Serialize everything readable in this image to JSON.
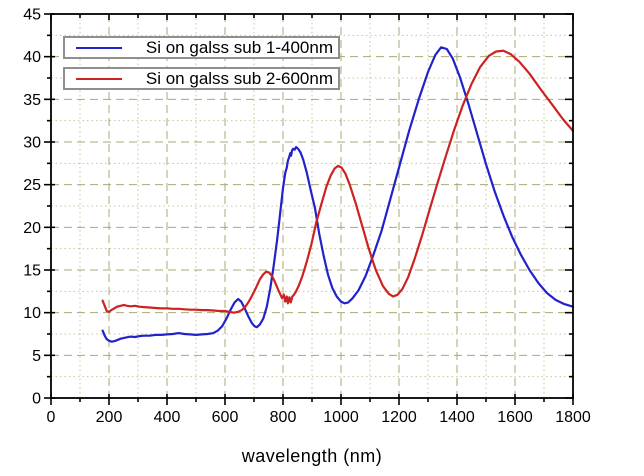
{
  "chart_data": {
    "type": "line",
    "title": "",
    "xlabel": "wavelength (nm)",
    "ylabel": "",
    "xlim": [
      0,
      1800
    ],
    "ylim": [
      0,
      45
    ],
    "xticks": [
      0,
      200,
      400,
      600,
      800,
      1000,
      1200,
      1400,
      1600,
      1800
    ],
    "yticks": [
      0,
      5,
      10,
      15,
      20,
      25,
      30,
      35,
      40,
      45
    ],
    "x_minor_step": 100,
    "y_minor_step": 2.5,
    "grid": "major dashed + minor dotted, olive color, on",
    "legend_position": "top-left, each entry in own framed box",
    "colors": {
      "series1": "#2222cc",
      "series2": "#cc2222",
      "grid_major": "#a9a973",
      "grid_minor": "#c6c69c",
      "axis": "#000000",
      "legend_border": "#8f8f8f",
      "background": "#ffffff"
    },
    "series": [
      {
        "name": "Si on galss sub 1-400nm",
        "color": "#2222cc",
        "points": [
          [
            178,
            7.9
          ],
          [
            185,
            7.3
          ],
          [
            192,
            6.9
          ],
          [
            200,
            6.7
          ],
          [
            210,
            6.6
          ],
          [
            222,
            6.7
          ],
          [
            240,
            6.95
          ],
          [
            260,
            7.1
          ],
          [
            275,
            7.2
          ],
          [
            290,
            7.15
          ],
          [
            305,
            7.25
          ],
          [
            320,
            7.3
          ],
          [
            340,
            7.3
          ],
          [
            360,
            7.4
          ],
          [
            380,
            7.4
          ],
          [
            400,
            7.45
          ],
          [
            420,
            7.5
          ],
          [
            440,
            7.6
          ],
          [
            460,
            7.5
          ],
          [
            480,
            7.45
          ],
          [
            500,
            7.4
          ],
          [
            520,
            7.45
          ],
          [
            540,
            7.5
          ],
          [
            560,
            7.6
          ],
          [
            575,
            7.9
          ],
          [
            590,
            8.4
          ],
          [
            605,
            9.3
          ],
          [
            620,
            10.4
          ],
          [
            633,
            11.2
          ],
          [
            645,
            11.6
          ],
          [
            656,
            11.3
          ],
          [
            668,
            10.5
          ],
          [
            680,
            9.6
          ],
          [
            692,
            8.8
          ],
          [
            702,
            8.4
          ],
          [
            710,
            8.3
          ],
          [
            720,
            8.6
          ],
          [
            732,
            9.3
          ],
          [
            744,
            10.7
          ],
          [
            756,
            12.8
          ],
          [
            768,
            15.5
          ],
          [
            780,
            18.6
          ],
          [
            790,
            21.6
          ],
          [
            800,
            24.6
          ],
          [
            808,
            26.4
          ],
          [
            813,
            27.0
          ],
          [
            817,
            27.8
          ],
          [
            821,
            28.2
          ],
          [
            825,
            28.7
          ],
          [
            828,
            28.4
          ],
          [
            831,
            29.0
          ],
          [
            835,
            29.2
          ],
          [
            840,
            29.1
          ],
          [
            845,
            29.4
          ],
          [
            852,
            29.2
          ],
          [
            860,
            28.8
          ],
          [
            870,
            27.9
          ],
          [
            882,
            26.4
          ],
          [
            895,
            24.4
          ],
          [
            910,
            22.3
          ],
          [
            925,
            19.2
          ],
          [
            940,
            16.7
          ],
          [
            955,
            14.5
          ],
          [
            970,
            12.9
          ],
          [
            985,
            11.9
          ],
          [
            1000,
            11.3
          ],
          [
            1012,
            11.1
          ],
          [
            1025,
            11.2
          ],
          [
            1040,
            11.7
          ],
          [
            1060,
            12.6
          ],
          [
            1085,
            14.3
          ],
          [
            1110,
            16.6
          ],
          [
            1140,
            19.6
          ],
          [
            1170,
            23.3
          ],
          [
            1200,
            27.0
          ],
          [
            1235,
            31.3
          ],
          [
            1270,
            35.2
          ],
          [
            1300,
            38.2
          ],
          [
            1325,
            40.2
          ],
          [
            1345,
            41.1
          ],
          [
            1365,
            40.9
          ],
          [
            1385,
            39.8
          ],
          [
            1410,
            37.6
          ],
          [
            1440,
            34.4
          ],
          [
            1470,
            30.9
          ],
          [
            1500,
            27.4
          ],
          [
            1530,
            24.2
          ],
          [
            1560,
            21.4
          ],
          [
            1590,
            18.9
          ],
          [
            1620,
            16.8
          ],
          [
            1650,
            15.0
          ],
          [
            1680,
            13.5
          ],
          [
            1710,
            12.3
          ],
          [
            1740,
            11.5
          ],
          [
            1770,
            11.0
          ],
          [
            1800,
            10.7
          ]
        ]
      },
      {
        "name": "Si on galss sub 2-600nm",
        "color": "#cc2222",
        "points": [
          [
            178,
            11.4
          ],
          [
            185,
            10.8
          ],
          [
            192,
            10.2
          ],
          [
            200,
            10.1
          ],
          [
            208,
            10.3
          ],
          [
            218,
            10.5
          ],
          [
            228,
            10.7
          ],
          [
            240,
            10.8
          ],
          [
            252,
            10.9
          ],
          [
            262,
            10.8
          ],
          [
            275,
            10.75
          ],
          [
            290,
            10.8
          ],
          [
            305,
            10.7
          ],
          [
            320,
            10.65
          ],
          [
            340,
            10.6
          ],
          [
            360,
            10.55
          ],
          [
            380,
            10.5
          ],
          [
            400,
            10.5
          ],
          [
            420,
            10.45
          ],
          [
            440,
            10.45
          ],
          [
            460,
            10.4
          ],
          [
            480,
            10.35
          ],
          [
            500,
            10.35
          ],
          [
            520,
            10.3
          ],
          [
            540,
            10.3
          ],
          [
            560,
            10.25
          ],
          [
            580,
            10.2
          ],
          [
            600,
            10.2
          ],
          [
            615,
            10.1
          ],
          [
            630,
            10.0
          ],
          [
            645,
            10.1
          ],
          [
            658,
            10.3
          ],
          [
            670,
            10.7
          ],
          [
            682,
            11.3
          ],
          [
            695,
            12.1
          ],
          [
            708,
            13.0
          ],
          [
            720,
            13.9
          ],
          [
            732,
            14.5
          ],
          [
            742,
            14.8
          ],
          [
            752,
            14.7
          ],
          [
            762,
            14.3
          ],
          [
            772,
            13.6
          ],
          [
            782,
            12.8
          ],
          [
            790,
            12.2
          ],
          [
            797,
            11.7
          ],
          [
            803,
            12.1
          ],
          [
            808,
            11.3
          ],
          [
            813,
            11.9
          ],
          [
            817,
            11.1
          ],
          [
            822,
            11.8
          ],
          [
            827,
            11.2
          ],
          [
            832,
            11.9
          ],
          [
            838,
            12.1
          ],
          [
            845,
            12.5
          ],
          [
            855,
            13.2
          ],
          [
            868,
            14.4
          ],
          [
            882,
            16.0
          ],
          [
            898,
            18.0
          ],
          [
            915,
            20.6
          ],
          [
            932,
            22.7
          ],
          [
            950,
            24.8
          ],
          [
            965,
            26.1
          ],
          [
            978,
            26.9
          ],
          [
            990,
            27.2
          ],
          [
            1002,
            27.0
          ],
          [
            1015,
            26.3
          ],
          [
            1030,
            25.0
          ],
          [
            1050,
            22.9
          ],
          [
            1072,
            20.3
          ],
          [
            1095,
            17.6
          ],
          [
            1120,
            15.0
          ],
          [
            1145,
            13.1
          ],
          [
            1165,
            12.2
          ],
          [
            1180,
            11.9
          ],
          [
            1195,
            12.1
          ],
          [
            1212,
            12.8
          ],
          [
            1232,
            14.2
          ],
          [
            1255,
            16.4
          ],
          [
            1280,
            19.1
          ],
          [
            1305,
            22.0
          ],
          [
            1332,
            25.1
          ],
          [
            1360,
            28.2
          ],
          [
            1390,
            31.4
          ],
          [
            1420,
            34.3
          ],
          [
            1450,
            36.8
          ],
          [
            1480,
            38.8
          ],
          [
            1510,
            40.1
          ],
          [
            1535,
            40.6
          ],
          [
            1560,
            40.7
          ],
          [
            1585,
            40.3
          ],
          [
            1615,
            39.4
          ],
          [
            1650,
            38.0
          ],
          [
            1690,
            36.1
          ],
          [
            1730,
            34.3
          ],
          [
            1765,
            32.7
          ],
          [
            1800,
            31.3
          ]
        ]
      }
    ]
  }
}
